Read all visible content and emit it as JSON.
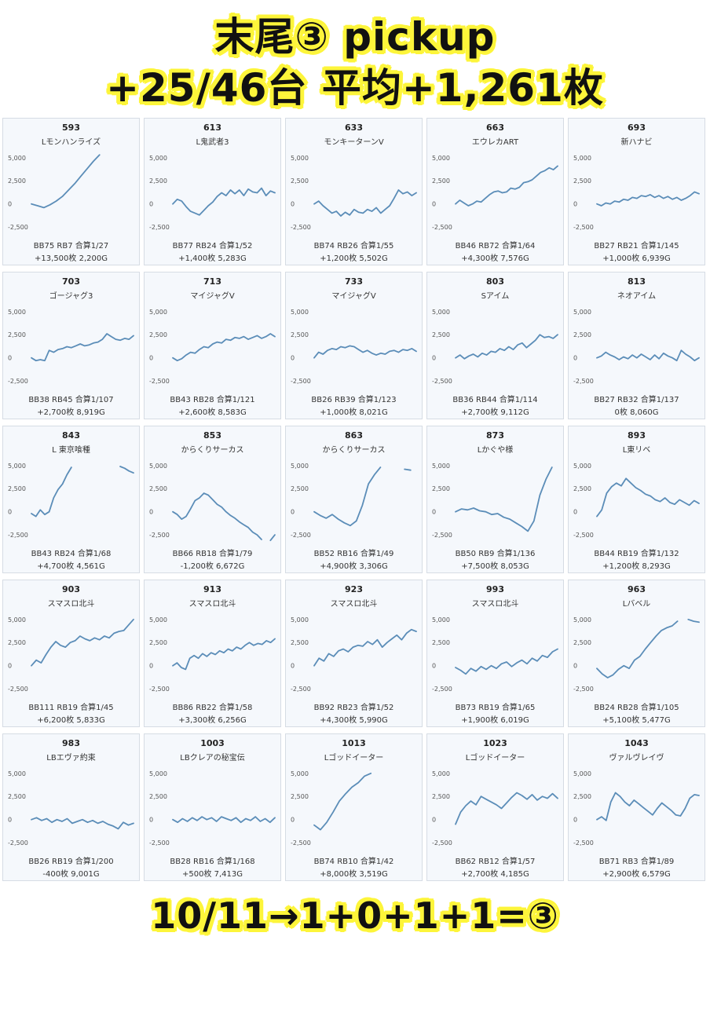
{
  "header": {
    "title_line1": "末尾③ pickup",
    "title_line2": "+25/46台 平均+1,261枚"
  },
  "footer": {
    "text": "10/11→1+0+1+1=③"
  },
  "colors": {
    "line": "#5b8db8",
    "panel_bg": "#f5f8fc",
    "highlight": "#fdf53a"
  },
  "chart_data": [
    {
      "type": "line",
      "machine_no": "593",
      "name": "Lモンハンライズ",
      "yticks": [
        "5,000",
        "2,500",
        "0",
        "-2,500"
      ],
      "ylim": [
        -3000,
        6000
      ],
      "values": [
        0,
        -200,
        -400,
        -100,
        300,
        800,
        1500,
        2200,
        3000,
        3800,
        4600,
        5300
      ],
      "stats1": "BB75 RB7 合算1/27",
      "stats2": "+13,500枚 2,200G"
    },
    {
      "type": "line",
      "machine_no": "613",
      "name": "L鬼武者3",
      "yticks": [
        "5,000",
        "2,500",
        "0",
        "-2,500"
      ],
      "ylim": [
        -3000,
        6000
      ],
      "values": [
        0,
        500,
        300,
        -300,
        -800,
        -1000,
        -1200,
        -700,
        -200,
        200,
        800,
        1200,
        900,
        1500,
        1100,
        1500,
        900,
        1600,
        1300,
        1200,
        1700,
        900,
        1400,
        1200
      ],
      "stats1": "BB77 RB24 合算1/52",
      "stats2": "+1,400枚 5,283G"
    },
    {
      "type": "line",
      "machine_no": "633",
      "name": "モンキーターンV",
      "yticks": [
        "5,000",
        "2,500",
        "0",
        "-2,500"
      ],
      "ylim": [
        -3000,
        6000
      ],
      "values": [
        0,
        300,
        -200,
        -600,
        -1000,
        -800,
        -1300,
        -900,
        -1200,
        -600,
        -900,
        -1000,
        -600,
        -800,
        -400,
        -1000,
        -600,
        -200,
        600,
        1500,
        1100,
        1300,
        900,
        1200
      ],
      "stats1": "BB74 RB26 合算1/55",
      "stats2": "+1,200枚 5,502G"
    },
    {
      "type": "line",
      "machine_no": "663",
      "name": "エウレカART",
      "yticks": [
        "5,000",
        "2,500",
        "0",
        "-2,500"
      ],
      "ylim": [
        -3000,
        6000
      ],
      "values": [
        0,
        400,
        100,
        -200,
        0,
        300,
        200,
        600,
        1000,
        1300,
        1400,
        1200,
        1300,
        1700,
        1600,
        1800,
        2300,
        2400,
        2600,
        3000,
        3400,
        3600,
        3900,
        3700,
        4100
      ],
      "stats1": "BB46 RB72 合算1/64",
      "stats2": "+4,300枚 7,576G"
    },
    {
      "type": "line",
      "machine_no": "693",
      "name": "新ハナビ",
      "yticks": [
        "5,000",
        "2,500",
        "0",
        "-2,500"
      ],
      "ylim": [
        -3000,
        6000
      ],
      "values": [
        0,
        -200,
        100,
        0,
        300,
        200,
        500,
        400,
        700,
        600,
        900,
        800,
        1000,
        700,
        900,
        600,
        800,
        500,
        700,
        400,
        600,
        900,
        1300,
        1100
      ],
      "stats1": "BB27 RB21 合算1/145",
      "stats2": "+1,000枚 6,939G"
    },
    {
      "type": "line",
      "machine_no": "703",
      "name": "ゴージャグ3",
      "yticks": [
        "5,000",
        "2,500",
        "0",
        "-2,500"
      ],
      "ylim": [
        -3000,
        6000
      ],
      "values": [
        0,
        -300,
        -200,
        -300,
        800,
        600,
        900,
        1000,
        1200,
        1100,
        1300,
        1500,
        1300,
        1400,
        1600,
        1700,
        2000,
        2600,
        2300,
        2000,
        1900,
        2100,
        2000,
        2400
      ],
      "stats1": "BB38 RB45 合算1/107",
      "stats2": "+2,700枚 8,919G"
    },
    {
      "type": "line",
      "machine_no": "713",
      "name": "マイジャグV",
      "yticks": [
        "5,000",
        "2,500",
        "0",
        "-2,500"
      ],
      "ylim": [
        -3000,
        6000
      ],
      "values": [
        0,
        -300,
        -100,
        300,
        600,
        500,
        900,
        1200,
        1100,
        1500,
        1700,
        1600,
        2000,
        1900,
        2200,
        2100,
        2300,
        2000,
        2200,
        2400,
        2100,
        2300,
        2600,
        2300
      ],
      "stats1": "BB43 RB28 合算1/121",
      "stats2": "+2,600枚 8,583G"
    },
    {
      "type": "line",
      "machine_no": "733",
      "name": "マイジャグV",
      "yticks": [
        "5,000",
        "2,500",
        "0",
        "-2,500"
      ],
      "ylim": [
        -3000,
        6000
      ],
      "values": [
        0,
        600,
        400,
        800,
        1000,
        900,
        1200,
        1100,
        1300,
        1200,
        900,
        600,
        800,
        500,
        300,
        500,
        400,
        700,
        800,
        600,
        900,
        800,
        1000,
        700
      ],
      "stats1": "BB26 RB39 合算1/123",
      "stats2": "+1,000枚 8,021G"
    },
    {
      "type": "line",
      "machine_no": "803",
      "name": "Sアイム",
      "yticks": [
        "5,000",
        "2,500",
        "0",
        "-2,500"
      ],
      "ylim": [
        -3000,
        6000
      ],
      "values": [
        0,
        300,
        -100,
        200,
        400,
        100,
        500,
        300,
        700,
        600,
        1000,
        800,
        1200,
        900,
        1400,
        1600,
        1100,
        1500,
        1900,
        2500,
        2200,
        2300,
        2100,
        2500
      ],
      "stats1": "BB36 RB44 合算1/114",
      "stats2": "+2,700枚 9,112G"
    },
    {
      "type": "line",
      "machine_no": "813",
      "name": "ネオアイム",
      "yticks": [
        "5,000",
        "2,500",
        "0",
        "-2,500"
      ],
      "ylim": [
        -3000,
        6000
      ],
      "values": [
        0,
        200,
        600,
        300,
        100,
        -200,
        100,
        -100,
        300,
        0,
        400,
        100,
        -200,
        300,
        -100,
        500,
        200,
        0,
        -300,
        800,
        400,
        100,
        -300,
        0
      ],
      "stats1": "BB27 RB32 合算1/137",
      "stats2": "0枚 8,060G"
    },
    {
      "type": "line",
      "machine_no": "843",
      "name": "L 東京喰種",
      "yticks": [
        "5,000",
        "2,500",
        "0",
        "-2,500"
      ],
      "ylim": [
        -3000,
        6000
      ],
      "values": [
        -200,
        -500,
        200,
        -300,
        0,
        1500,
        2400,
        3000,
        4000,
        4800,
        null,
        null,
        null,
        null,
        null,
        null,
        null,
        null,
        null,
        null,
        4900,
        4700,
        4400,
        4200
      ],
      "stats1": "BB43 RB24 合算1/68",
      "stats2": "+4,700枚 4,561G"
    },
    {
      "type": "line",
      "machine_no": "853",
      "name": "からくりサーカス",
      "yticks": [
        "5,000",
        "2,500",
        "0",
        "-2,500"
      ],
      "ylim": [
        -3000,
        6000
      ],
      "values": [
        0,
        -300,
        -800,
        -500,
        300,
        1200,
        1500,
        2000,
        1800,
        1300,
        800,
        500,
        0,
        -400,
        -700,
        -1100,
        -1400,
        -1700,
        -2200,
        -2500,
        -3000,
        null,
        -3100,
        -2500
      ],
      "stats1": "BB66 RB18 合算1/79",
      "stats2": "-1,200枚 6,672G"
    },
    {
      "type": "line",
      "machine_no": "863",
      "name": "からくりサーカス",
      "yticks": [
        "5,000",
        "2,500",
        "0",
        "-2,500"
      ],
      "ylim": [
        -3000,
        6000
      ],
      "values": [
        0,
        -400,
        -700,
        -300,
        -800,
        -1200,
        -1500,
        -1000,
        700,
        3000,
        4000,
        4800,
        null,
        null,
        null,
        4600,
        4500
      ],
      "stats1": "BB52 RB16 合算1/49",
      "stats2": "+4,900枚 3,306G"
    },
    {
      "type": "line",
      "machine_no": "873",
      "name": "Lかぐや様",
      "yticks": [
        "5,000",
        "2,500",
        "0",
        "-2,500"
      ],
      "ylim": [
        -3000,
        6000
      ],
      "values": [
        0,
        300,
        200,
        400,
        100,
        0,
        -300,
        -200,
        -600,
        -800,
        -1200,
        -1600,
        -2100,
        -1000,
        1800,
        3500,
        4800
      ],
      "stats1": "BB50 RB9 合算1/136",
      "stats2": "+7,500枚 8,053G"
    },
    {
      "type": "line",
      "machine_no": "893",
      "name": "L東リベ",
      "yticks": [
        "5,000",
        "2,500",
        "0",
        "-2,500"
      ],
      "ylim": [
        -3000,
        6000
      ],
      "values": [
        -500,
        200,
        2000,
        2700,
        3100,
        2800,
        3600,
        3100,
        2600,
        2300,
        1900,
        1700,
        1300,
        1100,
        1500,
        1000,
        800,
        1300,
        1000,
        700,
        1200,
        900
      ],
      "stats1": "BB44 RB19 合算1/132",
      "stats2": "+1,200枚 8,293G"
    },
    {
      "type": "line",
      "machine_no": "903",
      "name": "スマスロ北斗",
      "yticks": [
        "5,000",
        "2,500",
        "0",
        "-2,500"
      ],
      "ylim": [
        -3000,
        6000
      ],
      "values": [
        0,
        600,
        300,
        1200,
        2000,
        2600,
        2200,
        2000,
        2500,
        2700,
        3200,
        2900,
        2700,
        3000,
        2800,
        3200,
        3000,
        3500,
        3700,
        3800,
        4400,
        5000
      ],
      "stats1": "BB111 RB19 合算1/45",
      "stats2": "+6,200枚 5,833G"
    },
    {
      "type": "line",
      "machine_no": "913",
      "name": "スマスロ北斗",
      "yticks": [
        "5,000",
        "2,500",
        "0",
        "-2,500"
      ],
      "ylim": [
        -3000,
        6000
      ],
      "values": [
        0,
        300,
        -200,
        -400,
        800,
        1100,
        800,
        1300,
        1000,
        1400,
        1200,
        1600,
        1400,
        1800,
        1600,
        2000,
        1800,
        2200,
        2500,
        2200,
        2400,
        2300,
        2700,
        2500,
        2900
      ],
      "stats1": "BB86 RB22 合算1/58",
      "stats2": "+3,300枚 6,256G"
    },
    {
      "type": "line",
      "machine_no": "923",
      "name": "スマスロ北斗",
      "yticks": [
        "5,000",
        "2,500",
        "0",
        "-2,500"
      ],
      "ylim": [
        -3000,
        6000
      ],
      "values": [
        0,
        800,
        500,
        1300,
        1000,
        1600,
        1800,
        1500,
        2000,
        2200,
        2100,
        2600,
        2300,
        2800,
        2000,
        2500,
        2900,
        3300,
        2800,
        3500,
        3900,
        3700
      ],
      "stats1": "BB92 RB23 合算1/52",
      "stats2": "+4,300枚 5,990G"
    },
    {
      "type": "line",
      "machine_no": "993",
      "name": "スマスロ北斗",
      "yticks": [
        "5,000",
        "2,500",
        "0",
        "-2,500"
      ],
      "ylim": [
        -3000,
        6000
      ],
      "values": [
        -200,
        -500,
        -900,
        -300,
        -600,
        -100,
        -400,
        0,
        -300,
        200,
        400,
        -100,
        300,
        600,
        200,
        800,
        500,
        1100,
        900,
        1500,
        1800
      ],
      "stats1": "BB73 RB19 合算1/65",
      "stats2": "+1,900枚 6,019G"
    },
    {
      "type": "line",
      "machine_no": "963",
      "name": "Lバベル",
      "yticks": [
        "5,000",
        "2,500",
        "0",
        "-2,500"
      ],
      "ylim": [
        -3000,
        6000
      ],
      "values": [
        -300,
        -900,
        -1300,
        -1000,
        -400,
        0,
        -300,
        600,
        1000,
        1800,
        2500,
        3200,
        3800,
        4100,
        4300,
        4800,
        null,
        5000,
        4800,
        4700
      ],
      "stats1": "BB24 RB28 合算1/105",
      "stats2": "+5,100枚 5,477G"
    },
    {
      "type": "line",
      "machine_no": "983",
      "name": "LBエヴァ約束",
      "yticks": [
        "5,000",
        "2,500",
        "0",
        "-2,500"
      ],
      "ylim": [
        -3000,
        6000
      ],
      "values": [
        0,
        200,
        -100,
        100,
        -300,
        0,
        -200,
        100,
        -400,
        -200,
        0,
        -300,
        -100,
        -400,
        -200,
        -500,
        -700,
        -1000,
        -300,
        -600,
        -400
      ],
      "stats1": "BB26 RB19 合算1/200",
      "stats2": "-400枚 9,001G"
    },
    {
      "type": "line",
      "machine_no": "1003",
      "name": "LBクレアの秘宝伝",
      "yticks": [
        "5,000",
        "2,500",
        "0",
        "-2,500"
      ],
      "ylim": [
        -3000,
        6000
      ],
      "values": [
        0,
        -300,
        100,
        -200,
        200,
        -100,
        300,
        0,
        200,
        -200,
        300,
        100,
        -100,
        200,
        -300,
        100,
        -100,
        300,
        -200,
        100,
        -300,
        200
      ],
      "stats1": "BB28 RB16 合算1/168",
      "stats2": "+500枚 7,413G"
    },
    {
      "type": "line",
      "machine_no": "1013",
      "name": "Lゴッドイーター",
      "yticks": [
        "5,000",
        "2,500",
        "0",
        "-2,500"
      ],
      "ylim": [
        -3000,
        6000
      ],
      "values": [
        -600,
        -1100,
        -300,
        800,
        2000,
        2800,
        3500,
        4000,
        4700,
        5000
      ],
      "stats1": "BB74 RB10 合算1/42",
      "stats2": "+8,000枚 3,519G"
    },
    {
      "type": "line",
      "machine_no": "1023",
      "name": "Lゴッドイーター",
      "yticks": [
        "5,000",
        "2,500",
        "0",
        "-2,500"
      ],
      "ylim": [
        -3000,
        6000
      ],
      "values": [
        -500,
        800,
        1500,
        2000,
        1600,
        2500,
        2200,
        1900,
        1600,
        1200,
        1800,
        2400,
        2900,
        2600,
        2200,
        2700,
        2100,
        2500,
        2300,
        2800,
        2300
      ],
      "stats1": "BB62 RB12 合算1/57",
      "stats2": "+2,700枚 4,185G"
    },
    {
      "type": "line",
      "machine_no": "1043",
      "name": "ヴァルヴレイヴ",
      "yticks": [
        "5,000",
        "2,500",
        "0",
        "-2,500"
      ],
      "ylim": [
        -3000,
        6000
      ],
      "values": [
        0,
        300,
        -100,
        1900,
        2900,
        2500,
        1900,
        1500,
        2100,
        1700,
        1300,
        900,
        500,
        1200,
        1800,
        1400,
        1000,
        500,
        400,
        1200,
        2300,
        2700,
        2600
      ],
      "stats1": "BB71 RB3 合算1/89",
      "stats2": "+2,900枚 6,579G"
    }
  ]
}
